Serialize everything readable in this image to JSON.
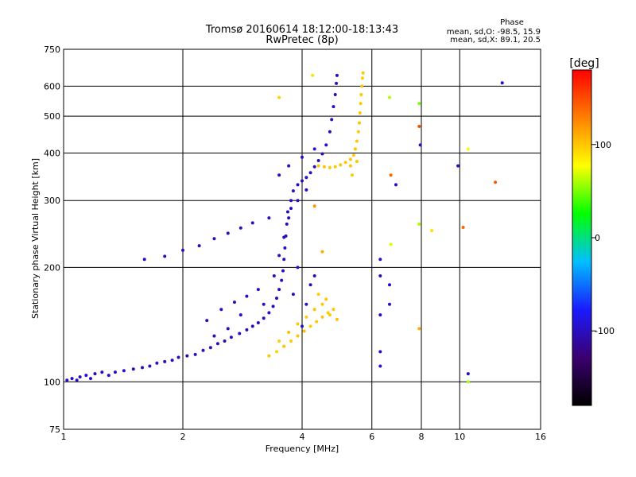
{
  "chart_data": {
    "type": "scatter",
    "title": "Tromsø 20160614 18:12:00-18:13:43",
    "subtitle": "RwPretec (8p)",
    "xlabel": "Frequency [MHz]",
    "ylabel": "Stationary phase Virtual Height [km]",
    "x_scale": "log",
    "y_scale": "log",
    "xlim": [
      1,
      16
    ],
    "ylim": [
      75,
      750
    ],
    "x_ticks": [
      1,
      2,
      4,
      6,
      8,
      10,
      16
    ],
    "y_ticks": [
      75,
      100,
      200,
      300,
      400,
      500,
      600,
      750
    ],
    "grid": true,
    "phase_stats": {
      "heading": "Phase",
      "line_o": "mean, sd,O: -98.5, 15.9",
      "line_x": "mean, sd,X:  89.1, 20.5"
    },
    "colorbar": {
      "label": "[deg]",
      "range": [
        -180,
        180
      ],
      "ticks": [
        -100,
        0,
        100
      ],
      "colors": [
        "#000000",
        "#3b0070",
        "#1a1aff",
        "#00bfff",
        "#00ff00",
        "#ffff00",
        "#ff8000",
        "#ff0000"
      ]
    },
    "series": [
      {
        "name": "O",
        "values": [
          [
            1.02,
            101,
            -95
          ],
          [
            1.05,
            102,
            -100
          ],
          [
            1.08,
            101,
            -98
          ],
          [
            1.1,
            103,
            -102
          ],
          [
            1.14,
            104,
            -96
          ],
          [
            1.17,
            102,
            -100
          ],
          [
            1.2,
            105,
            -105
          ],
          [
            1.25,
            106,
            -98
          ],
          [
            1.3,
            104,
            -95
          ],
          [
            1.35,
            106,
            -101
          ],
          [
            1.42,
            107,
            -97
          ],
          [
            1.5,
            108,
            -103
          ],
          [
            1.58,
            109,
            -99
          ],
          [
            1.65,
            110,
            -100
          ],
          [
            1.72,
            112,
            -96
          ],
          [
            1.8,
            113,
            -102
          ],
          [
            1.88,
            114,
            -98
          ],
          [
            1.95,
            116,
            -100
          ],
          [
            2.05,
            117,
            -104
          ],
          [
            2.15,
            118,
            -99
          ],
          [
            2.25,
            121,
            -101
          ],
          [
            2.35,
            123,
            -97
          ],
          [
            2.45,
            126,
            -100
          ],
          [
            2.55,
            128,
            -103
          ],
          [
            2.65,
            131,
            -99
          ],
          [
            2.78,
            134,
            -95
          ],
          [
            2.9,
            137,
            -100
          ],
          [
            3.0,
            140,
            -102
          ],
          [
            3.1,
            143,
            -98
          ],
          [
            3.2,
            147,
            -100
          ],
          [
            3.3,
            152,
            -96
          ],
          [
            3.38,
            158,
            -104
          ],
          [
            3.45,
            166,
            -100
          ],
          [
            3.5,
            175,
            -99
          ],
          [
            3.55,
            185,
            -101
          ],
          [
            3.58,
            196,
            -97
          ],
          [
            3.6,
            210,
            -103
          ],
          [
            3.62,
            225,
            -100
          ],
          [
            3.64,
            242,
            -98
          ],
          [
            3.66,
            260,
            -100
          ],
          [
            3.68,
            280,
            -102
          ],
          [
            3.3,
            270,
            -99
          ],
          [
            3.0,
            262,
            -100
          ],
          [
            2.8,
            254,
            -97
          ],
          [
            2.6,
            246,
            -103
          ],
          [
            2.4,
            238,
            -100
          ],
          [
            2.2,
            228,
            -98
          ],
          [
            2.0,
            222,
            -101
          ],
          [
            1.8,
            214,
            -99
          ],
          [
            1.6,
            210,
            -100
          ],
          [
            3.75,
            300,
            -100
          ],
          [
            3.8,
            318,
            -98
          ],
          [
            3.9,
            330,
            -102
          ],
          [
            4.0,
            338,
            -100
          ],
          [
            4.1,
            345,
            -97
          ],
          [
            4.2,
            355,
            -101
          ],
          [
            4.3,
            368,
            -99
          ],
          [
            4.4,
            382,
            -100
          ],
          [
            4.5,
            398,
            -103
          ],
          [
            4.6,
            420,
            -98
          ],
          [
            4.7,
            455,
            -100
          ],
          [
            4.75,
            490,
            -101
          ],
          [
            4.8,
            530,
            -99
          ],
          [
            4.85,
            570,
            -100
          ],
          [
            4.88,
            610,
            -97
          ],
          [
            4.9,
            640,
            -102
          ],
          [
            2.3,
            145,
            -100
          ],
          [
            2.5,
            155,
            -98
          ],
          [
            2.7,
            162,
            -103
          ],
          [
            2.9,
            168,
            -100
          ],
          [
            3.1,
            175,
            -97
          ],
          [
            2.4,
            132,
            -101
          ],
          [
            2.6,
            138,
            -100
          ],
          [
            2.8,
            150,
            -99
          ],
          [
            3.2,
            160,
            -102
          ],
          [
            3.4,
            190,
            -100
          ],
          [
            3.5,
            215,
            -98
          ],
          [
            3.6,
            240,
            -101
          ],
          [
            3.7,
            270,
            -100
          ],
          [
            3.75,
            286,
            -97
          ],
          [
            3.9,
            300,
            -103
          ],
          [
            4.1,
            320,
            -100
          ],
          [
            3.5,
            350,
            -99
          ],
          [
            3.7,
            370,
            -100
          ],
          [
            4.0,
            390,
            -101
          ],
          [
            4.3,
            410,
            -98
          ],
          [
            4.0,
            140,
            -100
          ],
          [
            4.1,
            160,
            -99
          ],
          [
            4.2,
            180,
            -102
          ],
          [
            4.3,
            190,
            -100
          ],
          [
            3.9,
            200,
            -98
          ],
          [
            3.8,
            170,
            -101
          ],
          [
            6.3,
            210,
            -100
          ],
          [
            6.3,
            190,
            -99
          ],
          [
            6.3,
            150,
            -102
          ],
          [
            6.3,
            120,
            -100
          ],
          [
            6.3,
            110,
            -97
          ],
          [
            6.65,
            180,
            -100
          ],
          [
            6.65,
            160,
            -98
          ],
          [
            6.9,
            330,
            -100
          ],
          [
            7.95,
            420,
            -101
          ],
          [
            10.5,
            105,
            -99
          ],
          [
            9.9,
            370,
            -100
          ],
          [
            12.8,
            612,
            -102
          ]
        ]
      },
      {
        "name": "X",
        "values": [
          [
            3.3,
            117,
            100
          ],
          [
            3.45,
            120,
            95
          ],
          [
            3.6,
            124,
            102
          ],
          [
            3.75,
            128,
            98
          ],
          [
            3.9,
            132,
            100
          ],
          [
            4.05,
            136,
            103
          ],
          [
            4.2,
            140,
            97
          ],
          [
            4.35,
            144,
            100
          ],
          [
            4.5,
            148,
            101
          ],
          [
            4.65,
            152,
            99
          ],
          [
            4.8,
            155,
            100
          ],
          [
            3.5,
            128,
            96
          ],
          [
            3.7,
            135,
            104
          ],
          [
            3.9,
            142,
            100
          ],
          [
            4.1,
            148,
            98
          ],
          [
            4.3,
            155,
            101
          ],
          [
            4.5,
            160,
            100
          ],
          [
            4.7,
            150,
            99
          ],
          [
            4.9,
            146,
            102
          ],
          [
            4.6,
            165,
            100
          ],
          [
            4.4,
            170,
            97
          ],
          [
            4.4,
            370,
            100
          ],
          [
            4.55,
            368,
            102
          ],
          [
            4.7,
            366,
            98
          ],
          [
            4.85,
            368,
            100
          ],
          [
            5.0,
            372,
            101
          ],
          [
            5.15,
            378,
            99
          ],
          [
            5.3,
            385,
            100
          ],
          [
            5.4,
            395,
            97
          ],
          [
            5.45,
            410,
            103
          ],
          [
            5.5,
            430,
            100
          ],
          [
            5.55,
            455,
            98
          ],
          [
            5.58,
            480,
            101
          ],
          [
            5.6,
            510,
            100
          ],
          [
            5.62,
            540,
            99
          ],
          [
            5.64,
            570,
            100
          ],
          [
            5.66,
            600,
            102
          ],
          [
            5.68,
            630,
            98
          ],
          [
            5.7,
            650,
            100
          ],
          [
            5.3,
            370,
            101
          ],
          [
            5.35,
            350,
            99
          ],
          [
            5.5,
            380,
            100
          ],
          [
            4.25,
            640,
            90
          ],
          [
            3.5,
            560,
            95
          ],
          [
            4.3,
            290,
            120
          ],
          [
            4.5,
            220,
            110
          ],
          [
            6.65,
            560,
            60
          ],
          [
            7.9,
            540,
            50
          ],
          [
            6.7,
            230,
            70
          ],
          [
            6.7,
            350,
            140
          ],
          [
            7.9,
            470,
            150
          ],
          [
            10.5,
            410,
            80
          ],
          [
            10.2,
            255,
            140
          ],
          [
            12.3,
            335,
            145
          ],
          [
            8.5,
            250,
            90
          ],
          [
            7.9,
            260,
            60
          ],
          [
            7.9,
            138,
            110
          ],
          [
            10.5,
            100,
            60
          ]
        ]
      }
    ]
  }
}
